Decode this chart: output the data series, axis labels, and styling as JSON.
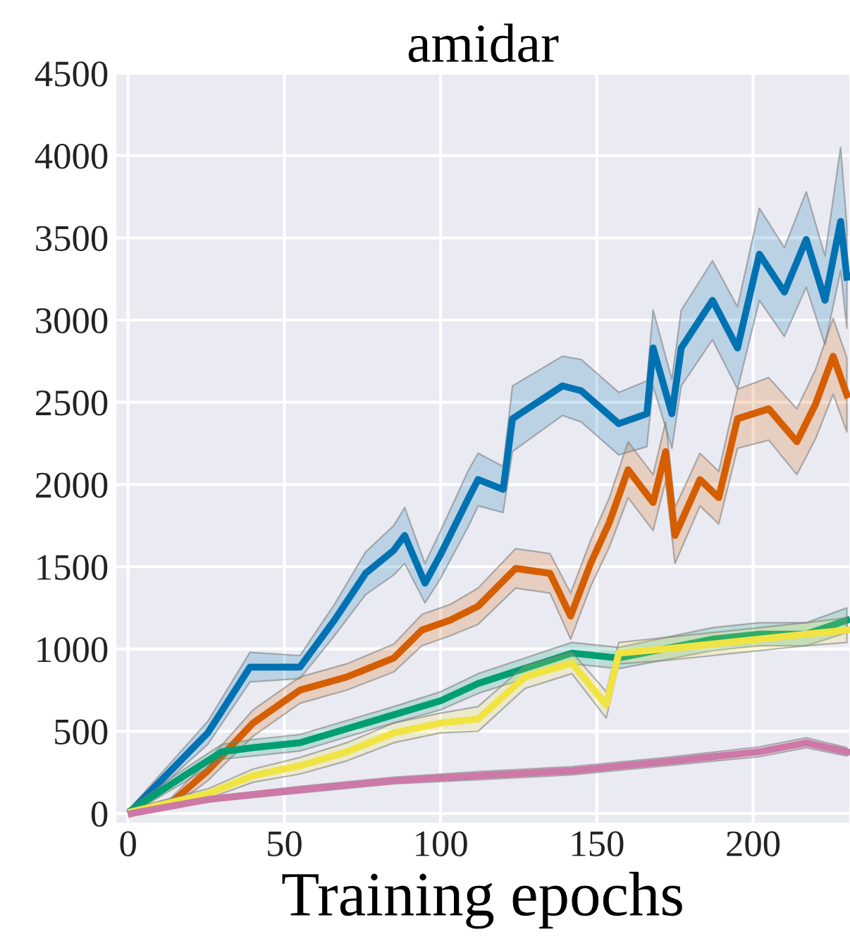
{
  "chart_data": {
    "type": "line",
    "title": "amidar",
    "xlabel": "Training epochs",
    "xlim": [
      -4,
      231
    ],
    "ylim": [
      -60,
      4500
    ],
    "xticks": [
      0,
      50,
      100,
      150,
      200
    ],
    "yticks": [
      0,
      500,
      1000,
      1500,
      2000,
      2500,
      3000,
      3500,
      4000,
      4500
    ],
    "grid": true,
    "line_style": "solid",
    "marker": "none",
    "series": [
      {
        "color": "#0072b2",
        "x": [
          1,
          25.5,
          39,
          55,
          66,
          76,
          85,
          88.5,
          95,
          100,
          109,
          112,
          120,
          123,
          139,
          145,
          157,
          166,
          168,
          174,
          177,
          187,
          195,
          202,
          210,
          217,
          223,
          228,
          230
        ],
        "values": [
          15,
          490,
          890,
          890,
          1175,
          1460,
          1600,
          1690,
          1400,
          1575,
          1920,
          2030,
          1970,
          2400,
          2600,
          2570,
          2370,
          2430,
          2830,
          2430,
          2830,
          3120,
          2830,
          3400,
          3170,
          3490,
          3120,
          3600,
          3260
        ],
        "lower": [
          0,
          420,
          800,
          820,
          1080,
          1330,
          1450,
          1520,
          1280,
          1430,
          1750,
          1870,
          1830,
          2200,
          2420,
          2380,
          2180,
          2230,
          2600,
          2220,
          2600,
          2880,
          2580,
          3120,
          2900,
          3200,
          2850,
          3300,
          2950
        ],
        "upper": [
          40,
          560,
          980,
          960,
          1270,
          1590,
          1750,
          1860,
          1520,
          1720,
          2090,
          2190,
          2110,
          2600,
          2780,
          2760,
          2560,
          2630,
          3060,
          2640,
          3060,
          3360,
          3080,
          3680,
          3440,
          3780,
          3390,
          4050,
          3570
        ]
      },
      {
        "color": "#d55e00",
        "x": [
          1,
          13.5,
          25.5,
          40,
          55,
          70,
          85,
          94,
          103,
          112,
          124,
          135,
          141.6,
          148,
          154,
          160,
          168,
          172,
          175,
          183,
          189,
          195,
          205,
          214,
          220,
          225.6,
          230
        ],
        "values": [
          0,
          60,
          260,
          550,
          750,
          830,
          945,
          1115,
          1175,
          1260,
          1490,
          1460,
          1200,
          1520,
          1770,
          2090,
          1890,
          2200,
          1690,
          2030,
          1920,
          2400,
          2460,
          2260,
          2490,
          2780,
          2545
        ],
        "lower": [
          0,
          30,
          200,
          470,
          670,
          750,
          860,
          1020,
          1080,
          1150,
          1370,
          1340,
          1060,
          1380,
          1620,
          1920,
          1720,
          2020,
          1520,
          1870,
          1760,
          2220,
          2270,
          2060,
          2280,
          2550,
          2320
        ],
        "upper": [
          20,
          90,
          320,
          630,
          830,
          910,
          1030,
          1210,
          1270,
          1370,
          1610,
          1580,
          1340,
          1660,
          1920,
          2260,
          2060,
          2380,
          1860,
          2190,
          2080,
          2580,
          2650,
          2460,
          2700,
          3010,
          2770
        ]
      },
      {
        "color": "#009e73",
        "x": [
          1,
          18,
          30,
          40,
          55,
          70,
          85,
          100,
          112,
          142,
          157,
          187,
          202,
          217,
          230
        ],
        "values": [
          20,
          230,
          375,
          400,
          430,
          515,
          600,
          685,
          790,
          975,
          945,
          1060,
          1090,
          1090,
          1175
        ],
        "lower": [
          0,
          190,
          330,
          350,
          380,
          465,
          550,
          630,
          730,
          910,
          880,
          990,
          1020,
          1020,
          1100
        ],
        "upper": [
          40,
          270,
          420,
          450,
          480,
          565,
          650,
          740,
          850,
          1040,
          1010,
          1130,
          1160,
          1160,
          1250
        ]
      },
      {
        "color": "#f0e442",
        "x": [
          1,
          25.5,
          40,
          55,
          70,
          85,
          100,
          112,
          127,
          142,
          153,
          157,
          172,
          187,
          202,
          217,
          230
        ],
        "values": [
          10,
          120,
          230,
          290,
          375,
          490,
          550,
          575,
          830,
          915,
          660,
          975,
          1000,
          1030,
          1060,
          1090,
          1115
        ],
        "lower": [
          0,
          90,
          190,
          240,
          320,
          430,
          490,
          500,
          760,
          850,
          580,
          910,
          930,
          960,
          990,
          1020,
          1040
        ],
        "upper": [
          30,
          150,
          270,
          340,
          430,
          550,
          610,
          650,
          900,
          980,
          740,
          1040,
          1070,
          1100,
          1130,
          1160,
          1190
        ]
      },
      {
        "color": "#cc79a7",
        "x": [
          1,
          25.5,
          55,
          85,
          112,
          142,
          172,
          202,
          217,
          230
        ],
        "values": [
          0,
          85,
          145,
          200,
          230,
          260,
          315,
          375,
          430,
          375
        ],
        "lower": [
          0,
          70,
          125,
          180,
          205,
          235,
          290,
          345,
          400,
          350
        ],
        "upper": [
          15,
          100,
          165,
          220,
          255,
          285,
          340,
          405,
          460,
          400
        ]
      }
    ]
  }
}
